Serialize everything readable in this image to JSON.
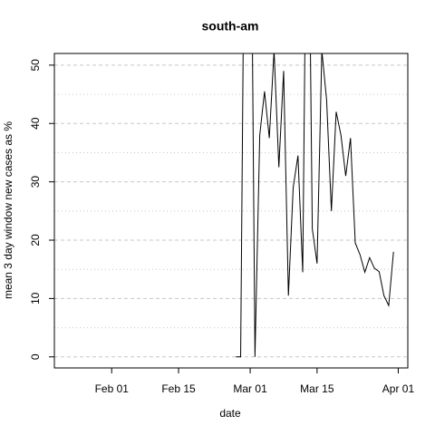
{
  "chart_data": {
    "type": "line",
    "title": "south-am",
    "xlabel": "date",
    "ylabel": "mean  3  day window new cases as %",
    "x": [
      "Feb 27",
      "Feb 28",
      "Feb 29",
      "Mar 01",
      "Mar 02",
      "Mar 03",
      "Mar 04",
      "Mar 05",
      "Mar 06",
      "Mar 07",
      "Mar 08",
      "Mar 09",
      "Mar 10",
      "Mar 11",
      "Mar 12",
      "Mar 13",
      "Mar 14",
      "Mar 15",
      "Mar 16",
      "Mar 17",
      "Mar 18",
      "Mar 19",
      "Mar 20",
      "Mar 21",
      "Mar 22",
      "Mar 23",
      "Mar 24",
      "Mar 25",
      "Mar 26",
      "Mar 27",
      "Mar 28",
      "Mar 29",
      "Mar 30",
      "Mar 31"
    ],
    "values": [
      0,
      0,
      100,
      100,
      0,
      38,
      45.5,
      37.5,
      52.5,
      32.5,
      49,
      10.5,
      29,
      34.5,
      14.5,
      100,
      22,
      16,
      52.5,
      44,
      25,
      42,
      38,
      31,
      37.5,
      19.5,
      17.5,
      14.5,
      17,
      15.2,
      14.6,
      10.5,
      8.8,
      18
    ],
    "color": "#000000",
    "xlim": [
      "Jan 20",
      "Apr 03"
    ],
    "xticks": [
      "Feb 01",
      "Feb 15",
      "Mar 01",
      "Mar 15",
      "Apr 01"
    ],
    "ylim": [
      -1.9,
      52
    ],
    "yticks": [
      0,
      10,
      20,
      30,
      40,
      50
    ],
    "grid": true,
    "ygrid": [
      0,
      5,
      10,
      15,
      20,
      25,
      30,
      35,
      40,
      45,
      50
    ]
  }
}
